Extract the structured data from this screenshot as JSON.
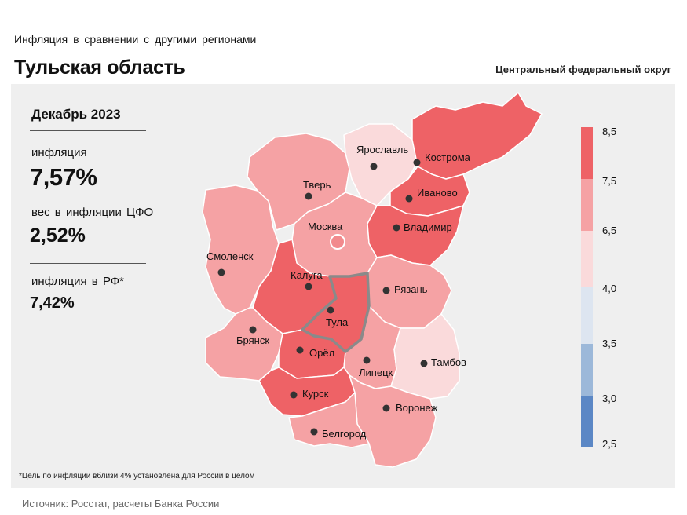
{
  "header": {
    "supertitle": "Инфляция  в сравнении  с другими  регионами",
    "title": "Тульская область",
    "district": "Центральный федеральный округ"
  },
  "info": {
    "period": "Декабрь 2023",
    "inflation_label": "инфляция",
    "inflation_value": "7,57%",
    "weight_label": "вес в инфляции  ЦФО",
    "weight_value": "2,52%",
    "rf_label": "инфляция  в РФ*",
    "rf_value": "7,42%"
  },
  "legend": {
    "ticks": [
      "8,5",
      "7,5",
      "6,5",
      "4,0",
      "3,5",
      "3,0",
      "2,5"
    ],
    "colors": [
      "#ee6266",
      "#f5a2a4",
      "#fadadb",
      "#dde5f0",
      "#9cb8d9",
      "#5b87c5"
    ]
  },
  "regions": [
    {
      "name": "Ярославль",
      "color": "#fadadb"
    },
    {
      "name": "Кострома",
      "color": "#ee6266"
    },
    {
      "name": "Иваново",
      "color": "#ee6266"
    },
    {
      "name": "Владимир",
      "color": "#ee6266"
    },
    {
      "name": "Тверь",
      "color": "#f5a2a4"
    },
    {
      "name": "Москва",
      "color": "#f5a2a4"
    },
    {
      "name": "Смоленск",
      "color": "#f5a2a4"
    },
    {
      "name": "Калуга",
      "color": "#ee6266"
    },
    {
      "name": "Тула",
      "color": "#ee6266"
    },
    {
      "name": "Рязань",
      "color": "#f5a2a4"
    },
    {
      "name": "Брянск",
      "color": "#f5a2a4"
    },
    {
      "name": "Орёл",
      "color": "#ee6266"
    },
    {
      "name": "Липецк",
      "color": "#f5a2a4"
    },
    {
      "name": "Тамбов",
      "color": "#fadadb"
    },
    {
      "name": "Курск",
      "color": "#ee6266"
    },
    {
      "name": "Воронеж",
      "color": "#f5a2a4"
    },
    {
      "name": "Белгород",
      "color": "#f5a2a4"
    }
  ],
  "footnote": "*Цель по инфляции вблизи 4% установлена для России в целом",
  "source": "Источник: Росстат, расчеты Банка России"
}
